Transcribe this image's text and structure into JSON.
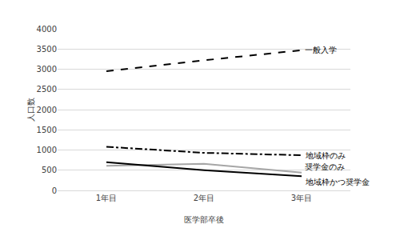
{
  "chart_data": {
    "type": "line",
    "x_label": "医学部卒後",
    "y_label": "人口数",
    "categories": [
      "1年目",
      "2年目",
      "3年目"
    ],
    "series": [
      {
        "name": "一般入学",
        "color": "#000000",
        "line_style": "dash",
        "values": [
          2950,
          3220,
          3470
        ]
      },
      {
        "name": "地域枠のみ",
        "color": "#000000",
        "line_style": "dashdot",
        "values": [
          1080,
          930,
          870
        ]
      },
      {
        "name": "奨学金のみ",
        "color": "#a6a6a6",
        "line_style": "solid",
        "values": [
          610,
          660,
          440
        ]
      },
      {
        "name": "地域枠かつ奨学金",
        "color": "#000000",
        "line_style": "solid",
        "values": [
          700,
          500,
          350
        ]
      }
    ],
    "ylim": [
      0,
      4000
    ],
    "yticks": [
      0,
      500,
      1000,
      1500,
      2000,
      2500,
      3000,
      3500,
      4000
    ],
    "grid": true
  }
}
